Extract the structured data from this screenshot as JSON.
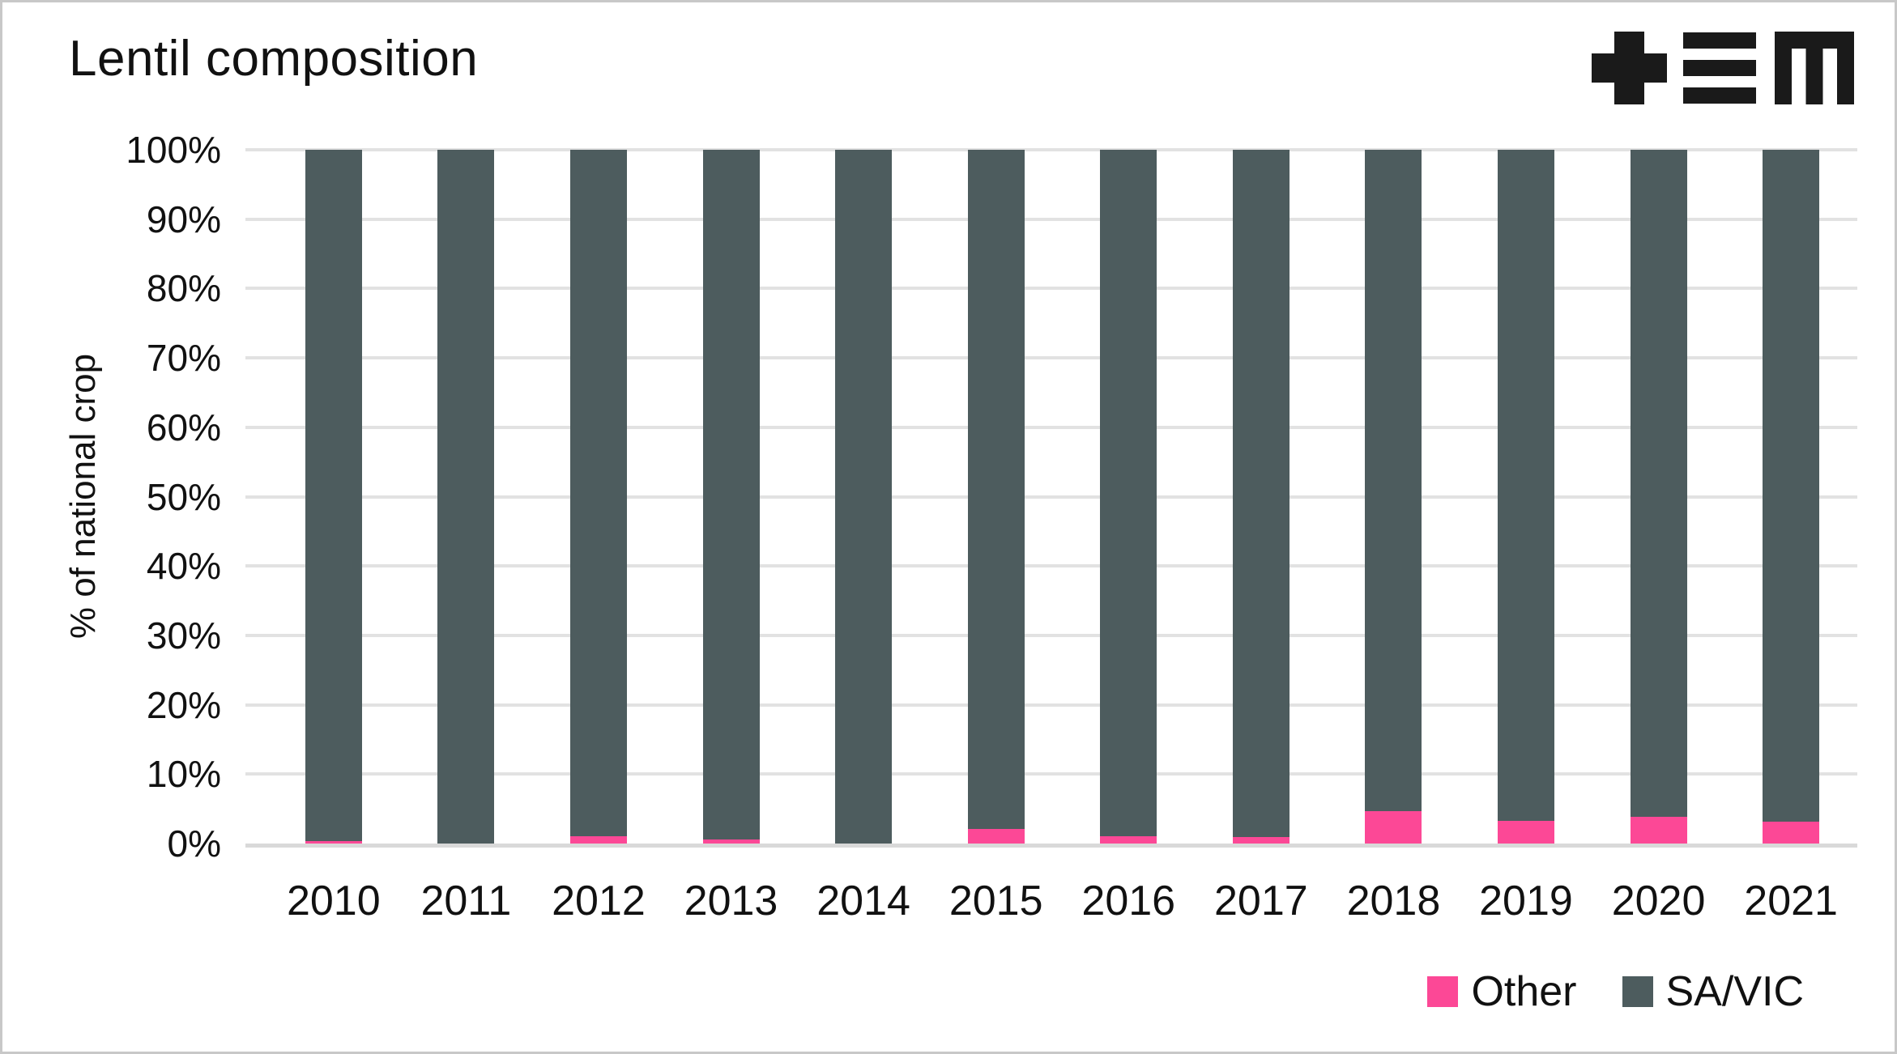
{
  "header": {
    "title": "Lentil composition",
    "logo": "tem-logo"
  },
  "chart_data": {
    "type": "bar",
    "stacked": true,
    "title": "Lentil composition",
    "ylabel": "% of national crop",
    "xlabel": "",
    "categories": [
      "2010",
      "2011",
      "2012",
      "2013",
      "2014",
      "2015",
      "2016",
      "2017",
      "2018",
      "2019",
      "2020",
      "2021"
    ],
    "series": [
      {
        "name": "Other",
        "color": "#fc4896",
        "values": [
          0.3,
          0.0,
          1.0,
          0.6,
          0.0,
          2.1,
          1.1,
          0.9,
          4.7,
          3.3,
          3.8,
          3.2
        ]
      },
      {
        "name": "SA/VIC",
        "color": "#4d5c5e",
        "values": [
          99.7,
          100.0,
          99.0,
          99.4,
          100.0,
          97.9,
          98.9,
          99.1,
          95.3,
          96.7,
          96.2,
          96.8
        ]
      }
    ],
    "ylim": [
      0,
      100
    ],
    "y_ticks": [
      "0%",
      "10%",
      "20%",
      "30%",
      "40%",
      "50%",
      "60%",
      "70%",
      "80%",
      "90%",
      "100%"
    ],
    "grid": "horizontal",
    "legend_position": "bottom-right",
    "legend": [
      {
        "label": "Other",
        "color": "#fc4896"
      },
      {
        "label": "SA/VIC",
        "color": "#4d5c5e"
      }
    ]
  },
  "colors": {
    "background": "#ffffff",
    "frame_border": "#c8c8c8",
    "gridline": "#e2e2e2",
    "baseline": "#d9d9d9",
    "text": "#111111",
    "logo": "#1a1a1a",
    "other_series": "#fc4896",
    "savic_series": "#4d5c5e"
  }
}
